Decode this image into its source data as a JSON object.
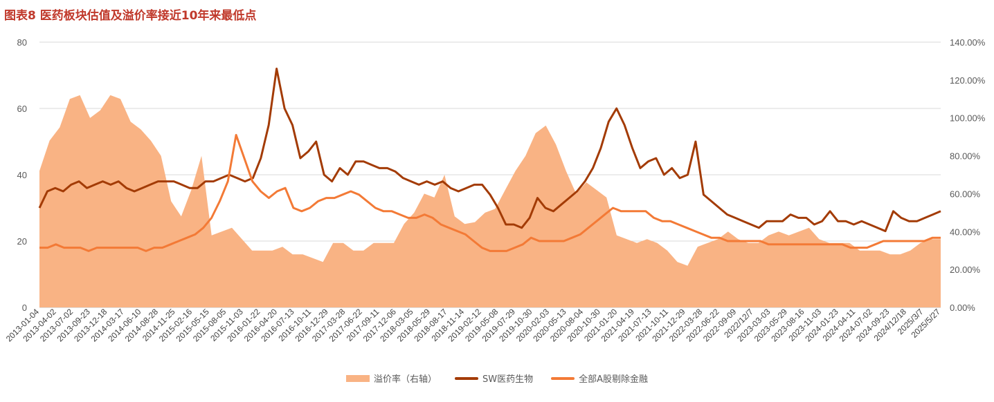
{
  "title": "图表8  医药板块估值及溢价率接近10年来最低点",
  "chart_data": {
    "type": "line",
    "x_ticks": [
      "2013-01-04",
      "2013-04-02",
      "2013-07-02",
      "2013-09-23",
      "2013-12-18",
      "2014-03-17",
      "2014-06-10",
      "2014-08-28",
      "2014-11-25",
      "2015-02-16",
      "2015-05-15",
      "2015-08-05",
      "2015-11-03",
      "2016-01-22",
      "2016-04-20",
      "2016-07-13",
      "2016-10-11",
      "2016-12-29",
      "2017-03-28",
      "2017-06-22",
      "2017-09-11",
      "2017-12-06",
      "2018-03-05",
      "2018-05-29",
      "2018-08-17",
      "2018-11-14",
      "2019-02-12",
      "2019-05-08",
      "2019-07-29",
      "2019-10-30",
      "2020-02-03",
      "2020-05-13",
      "2020-08-04",
      "2020-10-30",
      "2021-01-20",
      "2021-04-19",
      "2021-07-13",
      "2021-10-11",
      "2021-12-29",
      "2022-03-28",
      "2022-06-22",
      "2022-09-09",
      "2022/12/7",
      "2023-03-03",
      "2023-05-29",
      "2023-08-16",
      "2023-11-03",
      "2024-01-23",
      "2024-04-11",
      "2024-07-02",
      "2024-09-23",
      "2024/12/18",
      "2025/3/7",
      "2025/5/27"
    ],
    "y_left": {
      "range": [
        0,
        80
      ],
      "ticks": [
        "0",
        "20",
        "40",
        "60",
        "80"
      ]
    },
    "y_right": {
      "range": [
        0,
        1.4
      ],
      "ticks": [
        "0.00%",
        "20.00%",
        "40.00%",
        "60.00%",
        "80.00%",
        "100.00%",
        "120.00%",
        "140.00%"
      ]
    },
    "grid": true,
    "legend_position": "bottom",
    "series": [
      {
        "name": "溢价率（右轴）",
        "type": "area",
        "axis": "right",
        "color": "#f9b384",
        "values": [
          0.72,
          0.88,
          0.95,
          1.1,
          1.12,
          1.0,
          1.04,
          1.12,
          1.1,
          0.98,
          0.94,
          0.88,
          0.8,
          0.56,
          0.48,
          0.62,
          0.8,
          0.38,
          0.4,
          0.42,
          0.36,
          0.3,
          0.3,
          0.3,
          0.32,
          0.28,
          0.28,
          0.26,
          0.24,
          0.34,
          0.34,
          0.3,
          0.3,
          0.34,
          0.34,
          0.34,
          0.44,
          0.5,
          0.6,
          0.58,
          0.7,
          0.48,
          0.44,
          0.45,
          0.5,
          0.52,
          0.62,
          0.72,
          0.8,
          0.92,
          0.96,
          0.86,
          0.72,
          0.6,
          0.66,
          0.62,
          0.58,
          0.38,
          0.36,
          0.34,
          0.36,
          0.34,
          0.3,
          0.24,
          0.22,
          0.32,
          0.34,
          0.36,
          0.4,
          0.36,
          0.34,
          0.34,
          0.38,
          0.4,
          0.38,
          0.4,
          0.42,
          0.36,
          0.34,
          0.34,
          0.34,
          0.3,
          0.3,
          0.3,
          0.28,
          0.28,
          0.3,
          0.34,
          0.36,
          0.36
        ]
      },
      {
        "name": "SW医药生物",
        "type": "line",
        "axis": "left",
        "color": "#a33b05",
        "values": [
          30,
          35,
          36,
          35,
          37,
          38,
          36,
          37,
          38,
          37,
          38,
          36,
          35,
          36,
          37,
          38,
          38,
          38,
          37,
          36,
          36,
          38,
          38,
          39,
          40,
          39,
          38,
          39,
          45,
          55,
          72,
          60,
          55,
          45,
          47,
          50,
          40,
          38,
          42,
          40,
          44,
          44,
          43,
          42,
          42,
          41,
          39,
          38,
          37,
          38,
          37,
          38,
          36,
          35,
          36,
          37,
          37,
          34,
          30,
          25,
          25,
          24,
          27,
          33,
          30,
          29,
          31,
          33,
          35,
          38,
          42,
          48,
          56,
          60,
          55,
          48,
          42,
          44,
          45,
          40,
          42,
          39,
          40,
          50,
          34,
          32,
          30,
          28,
          27,
          26,
          25,
          24,
          26,
          26,
          26,
          28,
          27,
          27,
          25,
          26,
          29,
          26,
          26,
          25,
          26,
          25,
          24,
          23,
          29,
          27,
          26,
          26,
          27,
          28,
          29
        ]
      },
      {
        "name": "全部A股剔除金融",
        "type": "line",
        "axis": "left",
        "color": "#f37a36",
        "values": [
          18,
          18,
          19,
          18,
          18,
          18,
          17,
          18,
          18,
          18,
          18,
          18,
          18,
          17,
          18,
          18,
          19,
          20,
          21,
          22,
          24,
          27,
          32,
          38,
          52,
          45,
          38,
          35,
          33,
          35,
          36,
          30,
          29,
          30,
          32,
          33,
          33,
          34,
          35,
          34,
          32,
          30,
          29,
          29,
          28,
          27,
          27,
          28,
          27,
          25,
          24,
          23,
          22,
          20,
          18,
          17,
          17,
          17,
          18,
          19,
          21,
          20,
          20,
          20,
          20,
          21,
          22,
          24,
          26,
          28,
          30,
          29,
          29,
          29,
          29,
          27,
          26,
          26,
          25,
          24,
          23,
          22,
          21,
          21,
          20,
          20,
          20,
          20,
          20,
          19,
          19,
          19,
          19,
          19,
          19,
          19,
          19,
          19,
          19,
          18,
          18,
          18,
          19,
          20,
          20,
          20,
          20,
          20,
          20,
          21,
          21
        ]
      }
    ]
  }
}
